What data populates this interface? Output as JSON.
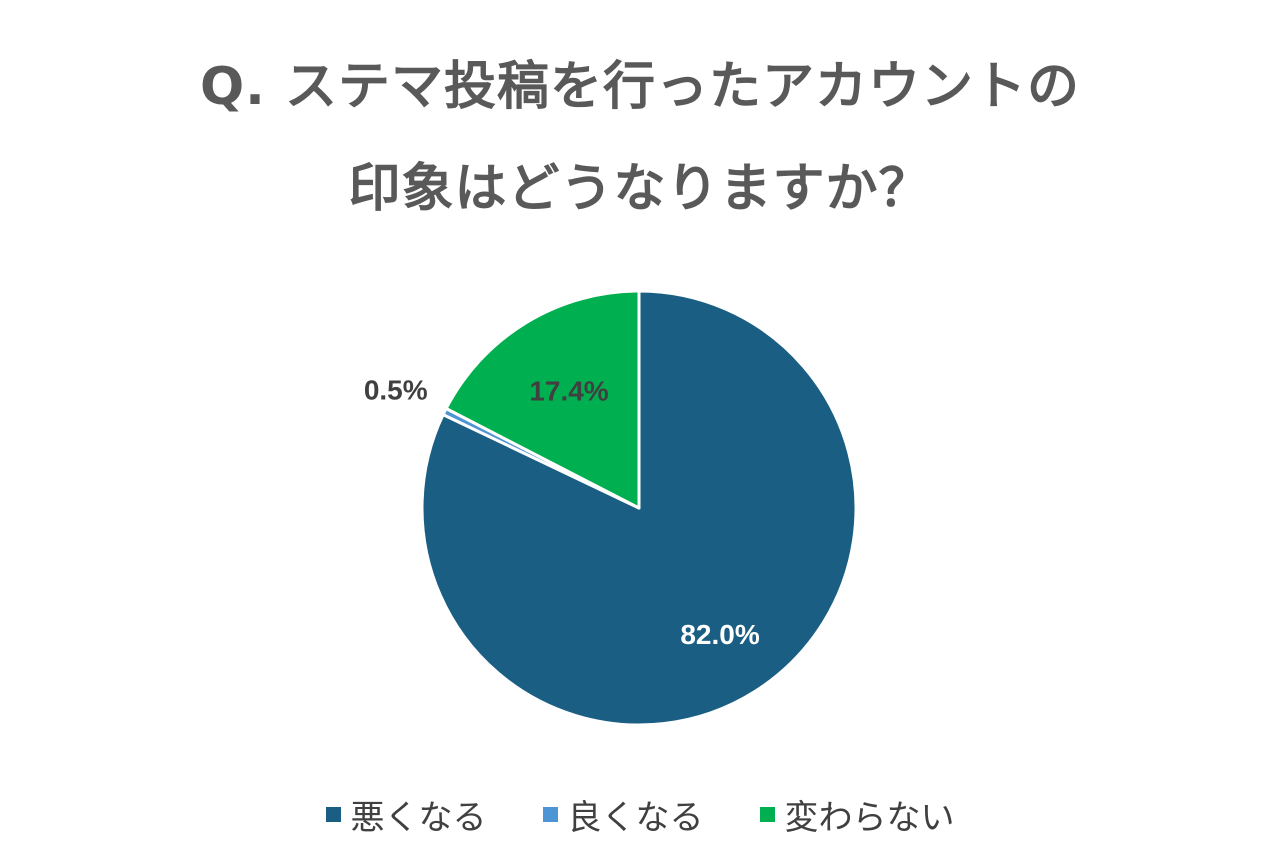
{
  "chart_data": {
    "type": "pie",
    "title_lines": [
      "Q. ステマ投稿を行ったアカウントの",
      "印象はどうなりますか？"
    ],
    "start": "top (12 o'clock), clockwise",
    "slices": [
      {
        "label": "悪くなる",
        "value": 82.0,
        "display": "82.0%",
        "color": "#1A5F83",
        "label_color": "#ffffff"
      },
      {
        "label": "良くなる",
        "value": 0.5,
        "display": "0.5%",
        "color": "#4E95D6",
        "label_color": "#404040"
      },
      {
        "label": "変わらない",
        "value": 17.4,
        "display": "17.4%",
        "color": "#00B050",
        "label_color": "#404040"
      }
    ],
    "legend": [
      "悪くなる",
      "良くなる",
      "変わらない"
    ],
    "legend_position": "bottom"
  }
}
